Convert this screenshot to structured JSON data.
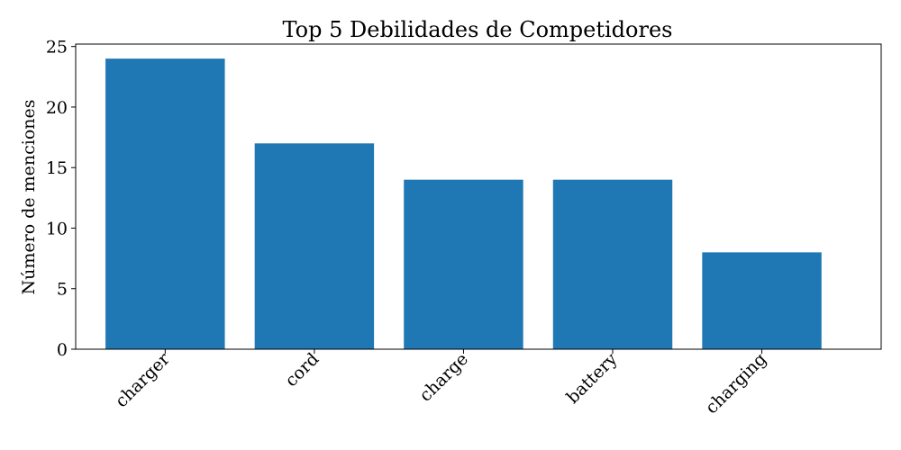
{
  "chart_data": {
    "type": "bar",
    "title": "Top 5 Debilidades de Competidores",
    "xlabel": "",
    "ylabel": "Número de menciones",
    "categories": [
      "charger",
      "cord",
      "charge",
      "battery",
      "charging"
    ],
    "values": [
      24,
      17,
      14,
      14,
      8
    ],
    "ylim": [
      0,
      25.2
    ],
    "yticks": [
      0,
      5,
      10,
      15,
      20,
      25
    ],
    "bar_color": "#1f77b4",
    "grid": false,
    "legend": "none"
  }
}
